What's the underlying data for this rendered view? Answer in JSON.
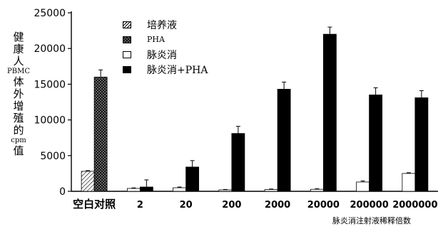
{
  "chart_data": {
    "type": "bar",
    "title": "",
    "ylabel_chars": [
      "健",
      "康",
      "人",
      "PBMC",
      "体",
      "外",
      "增",
      "殖",
      "的",
      "cpm",
      "值"
    ],
    "xlabel": "脉炎消注射液稀释倍数",
    "ylim": [
      0,
      25000
    ],
    "yticks": [
      0,
      5000,
      10000,
      15000,
      20000,
      25000
    ],
    "categories": [
      "空白对照",
      "2",
      "20",
      "200",
      "2000",
      "20000",
      "200000",
      "2000000"
    ],
    "series": [
      {
        "name": "培养液",
        "pattern": "hatch",
        "values": [
          2800,
          null,
          null,
          null,
          null,
          null,
          null,
          null
        ],
        "errors": [
          100,
          null,
          null,
          null,
          null,
          null,
          null,
          null
        ]
      },
      {
        "name": "PHA",
        "pattern": "checker",
        "values": [
          16000,
          null,
          null,
          null,
          null,
          null,
          null,
          null
        ],
        "errors": [
          1000,
          null,
          null,
          null,
          null,
          null,
          null,
          null
        ]
      },
      {
        "name": "脉炎消",
        "pattern": "white",
        "values": [
          null,
          400,
          500,
          200,
          250,
          280,
          1300,
          2500
        ],
        "errors": [
          null,
          80,
          100,
          60,
          70,
          80,
          150,
          100
        ]
      },
      {
        "name": "脉炎消+PHA",
        "pattern": "black",
        "values": [
          null,
          600,
          3400,
          8100,
          14300,
          22000,
          13500,
          13100
        ],
        "errors": [
          null,
          1000,
          900,
          1000,
          1000,
          1000,
          1000,
          1000
        ]
      }
    ],
    "legend": "top-left",
    "grid": false
  }
}
